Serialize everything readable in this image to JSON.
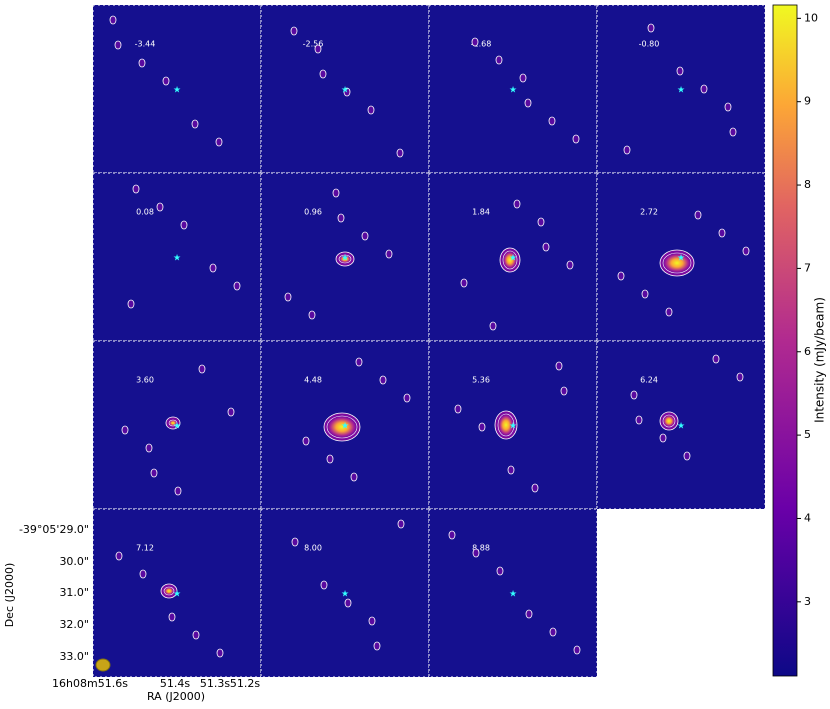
{
  "panels": [
    {
      "label": "-3.44"
    },
    {
      "label": "-2.56"
    },
    {
      "label": "-1.68"
    },
    {
      "label": "-0.80"
    },
    {
      "label": "0.08"
    },
    {
      "label": "0.96"
    },
    {
      "label": "1.84"
    },
    {
      "label": "2.72"
    },
    {
      "label": "3.60"
    },
    {
      "label": "4.48"
    },
    {
      "label": "5.36"
    },
    {
      "label": "6.24"
    },
    {
      "label": "7.12"
    },
    {
      "label": "8.00"
    },
    {
      "label": "8.88"
    }
  ],
  "axes": {
    "x_label": "RA (J2000)",
    "y_label": "Dec (J2000)",
    "x_ticks": [
      "16h08m51.6s",
      "51.4s",
      "51.3s",
      "51.2s"
    ],
    "y_ticks": [
      "-39°05'29.0\"",
      "30.0\"",
      "31.0\"",
      "32.0\"",
      "33.0\""
    ]
  },
  "colorbar": {
    "label": "Intensity (mJy/beam)",
    "ylim": [
      2.11,
      10.16
    ],
    "ticks": [
      3,
      4,
      5,
      6,
      7,
      8,
      9,
      10
    ]
  }
}
